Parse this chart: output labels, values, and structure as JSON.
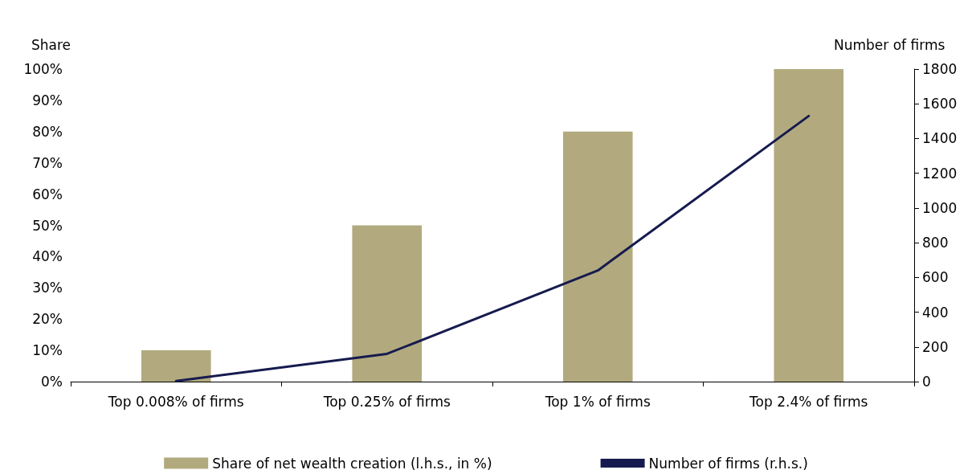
{
  "chart_data": {
    "type": "bar",
    "ylabel": "Share",
    "y2label": "Number of firms",
    "categories": [
      "Top 0.008% of firms",
      "Top 0.25% of firms",
      "Top 1% of firms",
      "Top 2.4% of firms"
    ],
    "series": [
      {
        "name": "Share of net wealth creation (l.h.s., in %)",
        "color": "#b2aa7e",
        "values": [
          10,
          50,
          80,
          100
        ]
      },
      {
        "name": "Number of firms (r.h.s.)",
        "type": "line",
        "axis": "y2",
        "color": "#161b4f",
        "values": [
          3,
          160,
          640,
          1530
        ]
      }
    ],
    "ylim": [
      0,
      100
    ],
    "yticks": [
      {
        "value": 0,
        "label": "0%"
      },
      {
        "value": 10,
        "label": "10%"
      },
      {
        "value": 20,
        "label": "20%"
      },
      {
        "value": 30,
        "label": "30%"
      },
      {
        "value": 40,
        "label": "40%"
      },
      {
        "value": 50,
        "label": "50%"
      },
      {
        "value": 60,
        "label": "60%"
      },
      {
        "value": 70,
        "label": "70%"
      },
      {
        "value": 80,
        "label": "80%"
      },
      {
        "value": 90,
        "label": "90%"
      },
      {
        "value": 100,
        "label": "100%"
      }
    ],
    "y2lim": [
      0,
      1800
    ],
    "y2ticks": [
      0,
      200,
      400,
      600,
      800,
      1000,
      1200,
      1400,
      1600,
      1800
    ],
    "grid": false,
    "legend": "bottom",
    "marker": "none",
    "line_style": "solid"
  }
}
